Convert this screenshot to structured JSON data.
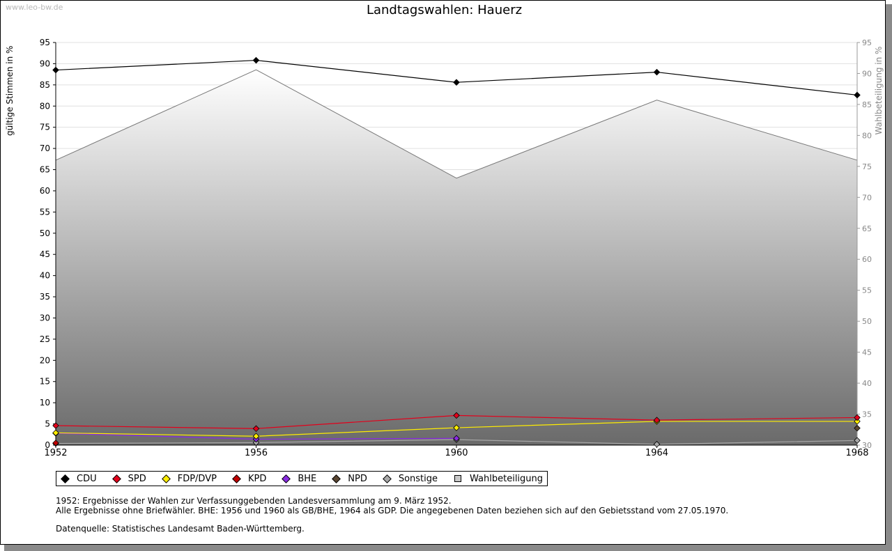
{
  "watermark": "www.leo-bw.de",
  "title": "Landtagswahlen: Hauerz",
  "axis_left_label": "gültige Stimmen in %",
  "axis_right_label": "Wahlbeteiligung in %",
  "notes": {
    "line1": "1952: Ergebnisse der Wahlen zur Verfassunggebenden Landesversammlung am 9. März 1952.",
    "line2": "Alle Ergebnisse ohne Briefwähler. BHE: 1956 und 1960 als GB/BHE, 1964 als GDP. Die angegebenen Daten beziehen sich auf den Gebietsstand vom 27.05.1970.",
    "source": "Datenquelle: Statistisches Landesamt Baden-Württemberg."
  },
  "chart_data": {
    "type": "line",
    "title": "Landtagswahlen: Hauerz",
    "xlabel": "",
    "ylabel": "gültige Stimmen in %",
    "y2label": "Wahlbeteiligung in %",
    "x": [
      "1952",
      "1956",
      "1960",
      "1964",
      "1968"
    ],
    "ylim": [
      0,
      95
    ],
    "yticks": [
      "0",
      "5",
      "10",
      "15",
      "20",
      "25",
      "30",
      "35",
      "40",
      "45",
      "50",
      "55",
      "60",
      "65",
      "70",
      "75",
      "80",
      "85",
      "90",
      "95"
    ],
    "y2lim": [
      30,
      95
    ],
    "y2ticks": [
      "30",
      "35",
      "40",
      "45",
      "50",
      "55",
      "60",
      "65",
      "70",
      "75",
      "80",
      "85",
      "90",
      "95"
    ],
    "grid": true,
    "legend_position": "bottom-left",
    "series": [
      {
        "name": "CDU",
        "color": "#000000",
        "values": [
          88.5,
          90.8,
          85.6,
          88.0,
          82.6
        ]
      },
      {
        "name": "SPD",
        "color": "#e3001b",
        "values": [
          4.6,
          3.9,
          7.0,
          5.9,
          6.5
        ]
      },
      {
        "name": "FDP/DVP",
        "color": "#ffed00",
        "values": [
          2.9,
          2.1,
          4.1,
          5.6,
          5.6
        ]
      },
      {
        "name": "KPD",
        "color": "#c00000",
        "values": [
          0.5,
          null,
          null,
          null,
          null
        ]
      },
      {
        "name": "BHE",
        "color": "#8a2be2",
        "values": [
          2.8,
          1.4,
          1.6,
          null,
          null
        ]
      },
      {
        "name": "NPD",
        "color": "#5a4632",
        "values": [
          null,
          null,
          null,
          null,
          4.0
        ]
      },
      {
        "name": "Sonstige",
        "color": "#a8a8a8",
        "values": [
          0.4,
          0.6,
          1.3,
          0.2,
          1.1
        ]
      }
    ],
    "turnout": {
      "name": "Wahlbeteiligung",
      "axis": "right",
      "values": [
        76.0,
        90.6,
        73.1,
        85.7,
        76.0
      ]
    }
  }
}
